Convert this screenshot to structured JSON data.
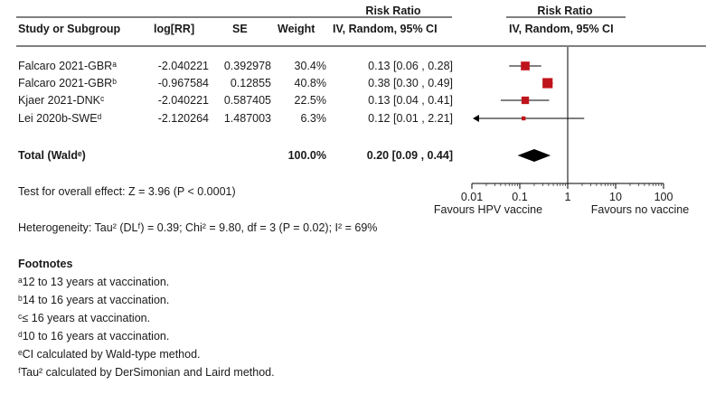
{
  "table": {
    "header_top": {
      "rr_left": "Risk Ratio",
      "rr_right": "Risk Ratio"
    },
    "header": {
      "study": "Study or Subgroup",
      "logrr": "log[RR]",
      "se": "SE",
      "weight": "Weight",
      "ci_left": "IV, Random, 95% CI",
      "ci_right": "IV, Random, 95% CI"
    },
    "rows": [
      {
        "study": "Falcaro 2021-GBRᵃ",
        "logrr": "-2.040221",
        "se": "0.392978",
        "weight": "30.4%",
        "ci": "0.13 [0.06 , 0.28]"
      },
      {
        "study": "Falcaro 2021-GBRᵇ",
        "logrr": "-0.967584",
        "se": "0.12855",
        "weight": "40.8%",
        "ci": "0.38 [0.30 , 0.49]"
      },
      {
        "study": "Kjaer 2021-DNKᶜ",
        "logrr": "-2.040221",
        "se": "0.587405",
        "weight": "22.5%",
        "ci": "0.13 [0.04 , 0.41]"
      },
      {
        "study": "Lei 2020b-SWEᵈ",
        "logrr": "-2.120264",
        "se": "1.487003",
        "weight": "6.3%",
        "ci": "0.12 [0.01 , 2.21]"
      }
    ],
    "total": {
      "label": "Total (Waldᵉ)",
      "weight": "100.0%",
      "ci": "0.20 [0.09 , 0.44]"
    }
  },
  "test_overall": "Test for overall effect: Z = 3.96 (P < 0.0001)",
  "heterogeneity": "Heterogeneity: Tau² (DLᶠ) = 0.39; Chi² = 9.80, df = 3 (P = 0.02); I² = 69%",
  "footnotes": {
    "title": "Footnotes",
    "items": [
      "ᵃ12 to 13 years at vaccination.",
      "ᵇ14 to 16 years at vaccination.",
      "ᶜ≤ 16 years at vaccination.",
      "ᵈ10 to 16 years at vaccination.",
      "ᵉCI calculated by Wald-type method.",
      "ᶠTau² calculated by DerSimonian and Laird method."
    ]
  },
  "chart_data": {
    "type": "forest",
    "scale": "log",
    "xlim": [
      0.01,
      100
    ],
    "ticks": [
      0.01,
      0.1,
      1,
      10,
      100
    ],
    "tick_labels": [
      "0.01",
      "0.1",
      "1",
      "10",
      "100"
    ],
    "favours_left": "Favours HPV vaccine",
    "favours_right": "Favours no vaccine",
    "colors": {
      "study_marker": "#c0141c",
      "total": "#000000",
      "line": "#000000"
    },
    "studies": [
      {
        "rr": 0.13,
        "lo": 0.06,
        "hi": 0.28,
        "weight": 30.4,
        "arrow_left": false
      },
      {
        "rr": 0.38,
        "lo": 0.3,
        "hi": 0.49,
        "weight": 40.8,
        "arrow_left": false
      },
      {
        "rr": 0.13,
        "lo": 0.04,
        "hi": 0.41,
        "weight": 22.5,
        "arrow_left": false
      },
      {
        "rr": 0.12,
        "lo": 0.01,
        "hi": 2.21,
        "weight": 6.3,
        "arrow_left": true
      }
    ],
    "total": {
      "rr": 0.2,
      "lo": 0.09,
      "hi": 0.44
    }
  }
}
